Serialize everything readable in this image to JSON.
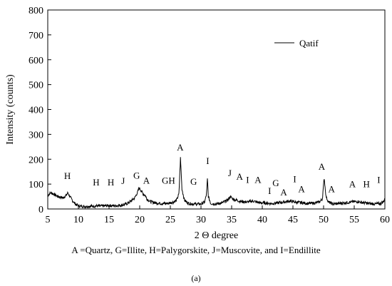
{
  "chart_data": {
    "type": "line",
    "xlabel": "2 Θ degree",
    "ylabel": "Intensity (counts)",
    "xlim": [
      5,
      60
    ],
    "ylim": [
      0,
      800
    ],
    "x_ticks": [
      "5",
      "10",
      "15",
      "20",
      "25",
      "30",
      "35",
      "40",
      "45",
      "50",
      "55",
      "60"
    ],
    "y_ticks": [
      "0",
      "100",
      "200",
      "300",
      "400",
      "500",
      "600",
      "700",
      "800"
    ],
    "grid": false,
    "legend_position": "top-right",
    "series": [
      {
        "name": "Qatif",
        "color": "#000000",
        "x": [
          5.0,
          5.5,
          6.0,
          6.5,
          7.0,
          7.5,
          8.0,
          8.3,
          8.6,
          9.0,
          9.5,
          10.0,
          11.0,
          12.0,
          13.0,
          14.0,
          15.0,
          16.0,
          17.0,
          17.8,
          18.5,
          19.2,
          19.7,
          19.9,
          20.2,
          20.6,
          20.9,
          21.2,
          21.7,
          22.5,
          23.5,
          24.5,
          25.5,
          26.0,
          26.4,
          26.65,
          26.9,
          27.3,
          28.0,
          29.0,
          30.0,
          30.6,
          30.9,
          31.05,
          31.2,
          31.6,
          32.5,
          33.5,
          34.3,
          34.8,
          35.2,
          35.8,
          36.5,
          37.5,
          38.5,
          39.5,
          40.5,
          41.5,
          42.5,
          43.5,
          44.5,
          45.5,
          46.5,
          47.5,
          48.5,
          49.3,
          49.8,
          50.1,
          50.4,
          50.8,
          51.5,
          52.5,
          53.5,
          54.5,
          55.5,
          56.5,
          57.5,
          58.5,
          59.3,
          59.8,
          60.0
        ],
        "y": [
          55,
          65,
          60,
          52,
          48,
          45,
          55,
          65,
          50,
          35,
          20,
          12,
          10,
          11,
          12,
          12,
          14,
          13,
          15,
          20,
          30,
          45,
          70,
          85,
          75,
          60,
          55,
          40,
          30,
          25,
          22,
          22,
          28,
          35,
          60,
          205,
          80,
          35,
          22,
          20,
          20,
          28,
          60,
          120,
          50,
          22,
          20,
          25,
          35,
          50,
          40,
          35,
          30,
          28,
          32,
          25,
          24,
          22,
          24,
          28,
          32,
          27,
          25,
          22,
          24,
          28,
          40,
          125,
          50,
          28,
          20,
          22,
          25,
          28,
          30,
          25,
          22,
          20,
          22,
          30,
          45
        ]
      }
    ],
    "annotations": [
      {
        "text": "H",
        "x": 8.2,
        "y": 120
      },
      {
        "text": "H",
        "x": 12.9,
        "y": 95
      },
      {
        "text": "H",
        "x": 15.3,
        "y": 95
      },
      {
        "text": "J",
        "x": 17.3,
        "y": 100
      },
      {
        "text": "G",
        "x": 19.5,
        "y": 122
      },
      {
        "text": "A",
        "x": 21.1,
        "y": 102
      },
      {
        "text": "GH",
        "x": 24.7,
        "y": 102
      },
      {
        "text": "A",
        "x": 26.6,
        "y": 235
      },
      {
        "text": "G",
        "x": 28.8,
        "y": 98
      },
      {
        "text": "I",
        "x": 31.1,
        "y": 180
      },
      {
        "text": "J",
        "x": 34.7,
        "y": 132
      },
      {
        "text": "A",
        "x": 36.3,
        "y": 118
      },
      {
        "text": "I",
        "x": 37.6,
        "y": 105
      },
      {
        "text": "A",
        "x": 39.3,
        "y": 105
      },
      {
        "text": "I",
        "x": 41.2,
        "y": 60
      },
      {
        "text": "G",
        "x": 42.2,
        "y": 92
      },
      {
        "text": "A",
        "x": 43.5,
        "y": 55
      },
      {
        "text": "I",
        "x": 45.3,
        "y": 108
      },
      {
        "text": "A",
        "x": 46.4,
        "y": 68
      },
      {
        "text": "A",
        "x": 49.7,
        "y": 158
      },
      {
        "text": "A",
        "x": 51.3,
        "y": 68
      },
      {
        "text": "A",
        "x": 54.7,
        "y": 88
      },
      {
        "text": "H",
        "x": 57.0,
        "y": 88
      },
      {
        "text": "I",
        "x": 59.0,
        "y": 105
      }
    ]
  },
  "caption": "A =Quartz, G=Illite, H=Palygorskite, J=Muscovite, and I=Endillite",
  "panel_label": "(a)"
}
